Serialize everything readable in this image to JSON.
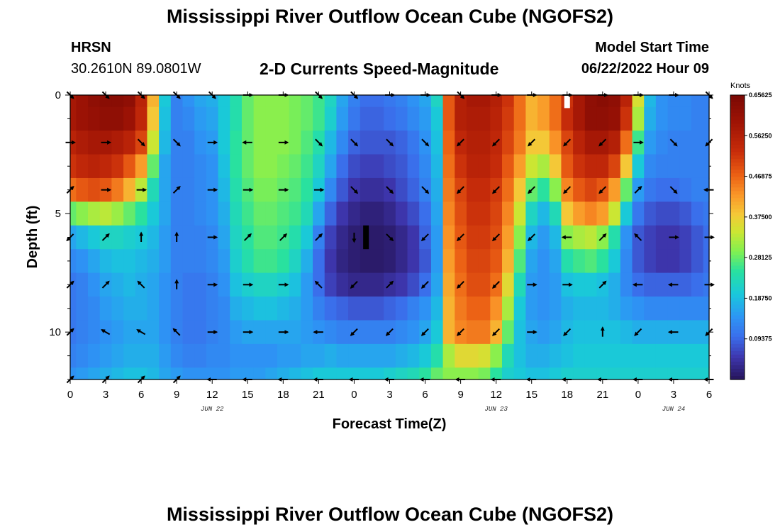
{
  "title": "Mississippi River Outflow Ocean Cube (NGOFS2)",
  "footer_title": "Mississippi River Outflow Ocean Cube (NGOFS2)",
  "station": {
    "name": "HRSN",
    "coords": "30.2610N  89.0801W"
  },
  "subtitle": "2-D Currents Speed-Magnitude",
  "model_start": {
    "label": "Model Start Time",
    "value": "06/22/2022 Hour 09"
  },
  "colors": {
    "arrow": "#000000",
    "axis": "#000000"
  },
  "chart_data": {
    "type": "heatmap",
    "title": "2-D Currents Speed-Magnitude",
    "xlabel": "Forecast Time(Z)",
    "ylabel": "Depth (ft)",
    "x_range_hours": [
      0,
      54
    ],
    "x_tick_hours": [
      0,
      3,
      6,
      9,
      12,
      15,
      18,
      21,
      24,
      27,
      30,
      33,
      36,
      39,
      42,
      45,
      48,
      51,
      54
    ],
    "x_tick_labels": [
      "0",
      "3",
      "6",
      "9",
      "12",
      "15",
      "18",
      "21",
      "0",
      "3",
      "6",
      "9",
      "12",
      "15",
      "18",
      "21",
      "0",
      "3",
      "6"
    ],
    "date_labels": [
      {
        "hour": 12,
        "text": "JUN 22"
      },
      {
        "hour": 36,
        "text": "JUN 23"
      },
      {
        "hour": 51,
        "text": "JUN 24"
      }
    ],
    "y_range_ft": [
      0,
      12
    ],
    "y_ticks": [
      0,
      5,
      10
    ],
    "colorbar": {
      "unit": "Knots",
      "min": 0,
      "max": 0.65625,
      "tick_values": [
        0.65625,
        0.5625,
        0.46875,
        0.375,
        0.28125,
        0.1875,
        0.09375
      ],
      "tick_labels": [
        "0.65625",
        "0.56250",
        "0.46875",
        "0.37500",
        "0.28125",
        "0.18750",
        "0.09375"
      ]
    },
    "grid": {
      "hours": [
        0,
        1,
        2,
        3,
        4,
        5,
        6,
        7,
        8,
        9,
        10,
        11,
        12,
        13,
        14,
        15,
        16,
        17,
        18,
        19,
        20,
        21,
        22,
        23,
        24,
        25,
        26,
        27,
        28,
        29,
        30,
        31,
        32,
        33,
        34,
        35,
        36,
        37,
        38,
        39,
        40,
        41,
        42,
        43,
        44,
        45,
        46,
        47,
        48,
        49,
        50,
        51,
        52,
        53,
        54
      ],
      "depths_ft": [
        0,
        1,
        2,
        3,
        4,
        5,
        6,
        7,
        8,
        9,
        10,
        11,
        12
      ],
      "speed_knots": [
        [
          0.58,
          0.6,
          0.62,
          0.63,
          0.63,
          0.62,
          0.55,
          0.4,
          0.2,
          0.12,
          0.14,
          0.16,
          0.17,
          0.2,
          0.24,
          0.28,
          0.3,
          0.3,
          0.3,
          0.29,
          0.28,
          0.26,
          0.22,
          0.16,
          0.12,
          0.1,
          0.1,
          0.11,
          0.12,
          0.14,
          0.16,
          0.22,
          0.48,
          0.56,
          0.58,
          0.58,
          0.56,
          0.52,
          0.46,
          0.4,
          0.42,
          0.46,
          0.52,
          0.58,
          0.62,
          0.63,
          0.62,
          0.55,
          0.35,
          0.18,
          0.14,
          0.13,
          0.13,
          0.12,
          0.12
        ],
        [
          0.58,
          0.6,
          0.61,
          0.62,
          0.62,
          0.6,
          0.54,
          0.38,
          0.19,
          0.12,
          0.13,
          0.15,
          0.16,
          0.2,
          0.24,
          0.28,
          0.3,
          0.3,
          0.3,
          0.29,
          0.28,
          0.26,
          0.21,
          0.15,
          0.11,
          0.09,
          0.09,
          0.1,
          0.11,
          0.13,
          0.15,
          0.2,
          0.48,
          0.56,
          0.57,
          0.57,
          0.55,
          0.51,
          0.46,
          0.4,
          0.42,
          0.46,
          0.53,
          0.58,
          0.62,
          0.62,
          0.61,
          0.52,
          0.32,
          0.17,
          0.14,
          0.13,
          0.13,
          0.12,
          0.12
        ],
        [
          0.55,
          0.57,
          0.58,
          0.58,
          0.57,
          0.55,
          0.5,
          0.34,
          0.18,
          0.12,
          0.12,
          0.14,
          0.15,
          0.2,
          0.25,
          0.28,
          0.3,
          0.3,
          0.3,
          0.29,
          0.27,
          0.24,
          0.18,
          0.13,
          0.09,
          0.08,
          0.08,
          0.08,
          0.09,
          0.11,
          0.14,
          0.19,
          0.47,
          0.54,
          0.56,
          0.56,
          0.54,
          0.5,
          0.45,
          0.38,
          0.38,
          0.43,
          0.5,
          0.55,
          0.58,
          0.58,
          0.56,
          0.46,
          0.26,
          0.15,
          0.13,
          0.12,
          0.12,
          0.12,
          0.12
        ],
        [
          0.52,
          0.54,
          0.55,
          0.54,
          0.52,
          0.48,
          0.42,
          0.28,
          0.16,
          0.12,
          0.12,
          0.13,
          0.14,
          0.19,
          0.25,
          0.28,
          0.3,
          0.3,
          0.29,
          0.28,
          0.26,
          0.22,
          0.16,
          0.1,
          0.07,
          0.06,
          0.06,
          0.07,
          0.08,
          0.1,
          0.13,
          0.18,
          0.46,
          0.52,
          0.55,
          0.55,
          0.53,
          0.48,
          0.42,
          0.34,
          0.32,
          0.38,
          0.48,
          0.52,
          0.54,
          0.54,
          0.5,
          0.38,
          0.2,
          0.13,
          0.12,
          0.12,
          0.12,
          0.12,
          0.12
        ],
        [
          0.46,
          0.48,
          0.49,
          0.48,
          0.45,
          0.4,
          0.33,
          0.23,
          0.16,
          0.12,
          0.12,
          0.13,
          0.14,
          0.18,
          0.24,
          0.27,
          0.29,
          0.29,
          0.28,
          0.27,
          0.25,
          0.2,
          0.13,
          0.08,
          0.05,
          0.04,
          0.04,
          0.05,
          0.07,
          0.09,
          0.12,
          0.17,
          0.45,
          0.5,
          0.53,
          0.53,
          0.51,
          0.46,
          0.38,
          0.28,
          0.25,
          0.3,
          0.44,
          0.48,
          0.5,
          0.48,
          0.42,
          0.28,
          0.15,
          0.11,
          0.1,
          0.1,
          0.11,
          0.12,
          0.12
        ],
        [
          0.28,
          0.3,
          0.32,
          0.33,
          0.31,
          0.28,
          0.25,
          0.2,
          0.16,
          0.12,
          0.12,
          0.13,
          0.14,
          0.17,
          0.23,
          0.26,
          0.28,
          0.28,
          0.27,
          0.26,
          0.23,
          0.16,
          0.09,
          0.05,
          0.03,
          0.02,
          0.02,
          0.03,
          0.05,
          0.07,
          0.1,
          0.16,
          0.44,
          0.49,
          0.52,
          0.52,
          0.5,
          0.44,
          0.34,
          0.22,
          0.18,
          0.23,
          0.38,
          0.42,
          0.44,
          0.42,
          0.34,
          0.2,
          0.11,
          0.08,
          0.07,
          0.07,
          0.08,
          0.1,
          0.11
        ],
        [
          0.16,
          0.18,
          0.2,
          0.22,
          0.22,
          0.21,
          0.2,
          0.18,
          0.15,
          0.12,
          0.12,
          0.12,
          0.13,
          0.16,
          0.22,
          0.25,
          0.27,
          0.27,
          0.26,
          0.24,
          0.2,
          0.12,
          0.06,
          0.03,
          0.015,
          0.01,
          0.01,
          0.015,
          0.03,
          0.05,
          0.09,
          0.15,
          0.43,
          0.48,
          0.51,
          0.51,
          0.49,
          0.42,
          0.3,
          0.18,
          0.15,
          0.18,
          0.3,
          0.32,
          0.33,
          0.3,
          0.24,
          0.14,
          0.08,
          0.06,
          0.05,
          0.05,
          0.06,
          0.08,
          0.1
        ],
        [
          0.13,
          0.14,
          0.16,
          0.18,
          0.19,
          0.19,
          0.18,
          0.17,
          0.15,
          0.12,
          0.12,
          0.12,
          0.13,
          0.15,
          0.21,
          0.24,
          0.26,
          0.26,
          0.25,
          0.22,
          0.17,
          0.1,
          0.05,
          0.025,
          0.015,
          0.01,
          0.01,
          0.015,
          0.03,
          0.05,
          0.08,
          0.15,
          0.42,
          0.47,
          0.5,
          0.5,
          0.48,
          0.4,
          0.27,
          0.16,
          0.14,
          0.16,
          0.24,
          0.26,
          0.27,
          0.25,
          0.2,
          0.13,
          0.08,
          0.06,
          0.05,
          0.05,
          0.06,
          0.08,
          0.1
        ],
        [
          0.11,
          0.12,
          0.14,
          0.16,
          0.17,
          0.18,
          0.17,
          0.16,
          0.14,
          0.12,
          0.11,
          0.11,
          0.12,
          0.14,
          0.19,
          0.21,
          0.22,
          0.22,
          0.21,
          0.19,
          0.15,
          0.1,
          0.06,
          0.04,
          0.03,
          0.03,
          0.03,
          0.04,
          0.05,
          0.07,
          0.1,
          0.16,
          0.41,
          0.46,
          0.49,
          0.49,
          0.46,
          0.36,
          0.23,
          0.15,
          0.14,
          0.15,
          0.19,
          0.2,
          0.2,
          0.19,
          0.17,
          0.13,
          0.1,
          0.09,
          0.09,
          0.09,
          0.09,
          0.1,
          0.11
        ],
        [
          0.11,
          0.12,
          0.13,
          0.15,
          0.16,
          0.17,
          0.17,
          0.16,
          0.14,
          0.12,
          0.11,
          0.11,
          0.12,
          0.13,
          0.17,
          0.18,
          0.19,
          0.19,
          0.18,
          0.17,
          0.15,
          0.12,
          0.1,
          0.09,
          0.08,
          0.08,
          0.08,
          0.09,
          0.1,
          0.12,
          0.14,
          0.18,
          0.4,
          0.45,
          0.47,
          0.47,
          0.43,
          0.32,
          0.2,
          0.15,
          0.14,
          0.15,
          0.17,
          0.18,
          0.18,
          0.18,
          0.17,
          0.15,
          0.14,
          0.13,
          0.13,
          0.13,
          0.13,
          0.13,
          0.13
        ],
        [
          0.11,
          0.12,
          0.13,
          0.14,
          0.15,
          0.16,
          0.16,
          0.16,
          0.14,
          0.12,
          0.11,
          0.11,
          0.12,
          0.13,
          0.15,
          0.16,
          0.16,
          0.16,
          0.16,
          0.16,
          0.15,
          0.14,
          0.13,
          0.12,
          0.12,
          0.12,
          0.12,
          0.12,
          0.13,
          0.14,
          0.16,
          0.2,
          0.4,
          0.44,
          0.45,
          0.45,
          0.4,
          0.28,
          0.19,
          0.16,
          0.15,
          0.16,
          0.18,
          0.19,
          0.19,
          0.19,
          0.19,
          0.18,
          0.17,
          0.17,
          0.17,
          0.17,
          0.17,
          0.17,
          0.17
        ],
        [
          0.12,
          0.13,
          0.14,
          0.15,
          0.16,
          0.17,
          0.17,
          0.17,
          0.15,
          0.13,
          0.12,
          0.12,
          0.13,
          0.13,
          0.14,
          0.14,
          0.14,
          0.14,
          0.15,
          0.15,
          0.16,
          0.16,
          0.17,
          0.16,
          0.16,
          0.16,
          0.16,
          0.16,
          0.17,
          0.18,
          0.2,
          0.24,
          0.32,
          0.36,
          0.36,
          0.35,
          0.3,
          0.23,
          0.19,
          0.17,
          0.17,
          0.18,
          0.19,
          0.2,
          0.2,
          0.2,
          0.2,
          0.2,
          0.2,
          0.2,
          0.2,
          0.2,
          0.2,
          0.2,
          0.2
        ],
        [
          0.14,
          0.15,
          0.16,
          0.17,
          0.18,
          0.19,
          0.19,
          0.18,
          0.16,
          0.15,
          0.14,
          0.14,
          0.14,
          0.14,
          0.15,
          0.15,
          0.15,
          0.16,
          0.17,
          0.18,
          0.19,
          0.2,
          0.2,
          0.2,
          0.2,
          0.2,
          0.2,
          0.21,
          0.22,
          0.23,
          0.25,
          0.28,
          0.3,
          0.3,
          0.3,
          0.29,
          0.25,
          0.21,
          0.2,
          0.19,
          0.19,
          0.2,
          0.21,
          0.21,
          0.21,
          0.21,
          0.21,
          0.21,
          0.21,
          0.21,
          0.21,
          0.21,
          0.21,
          0.21,
          0.21
        ]
      ]
    },
    "vectors": {
      "hours": [
        0,
        3,
        6,
        9,
        12,
        15,
        18,
        21,
        24,
        27,
        30,
        33,
        36,
        39,
        42,
        45,
        48,
        51,
        54
      ],
      "depths_ft": [
        0,
        2,
        4,
        6,
        8,
        10,
        12
      ],
      "direction_deg": [
        [
          135,
          135,
          135,
          135,
          135,
          90,
          90,
          135,
          135,
          90,
          90,
          135,
          90,
          90,
          90,
          90,
          90,
          90,
          135
        ],
        [
          90,
          90,
          135,
          135,
          90,
          270,
          90,
          135,
          135,
          135,
          135,
          225,
          225,
          225,
          225,
          225,
          90,
          135,
          225
        ],
        [
          45,
          90,
          90,
          45,
          90,
          90,
          90,
          90,
          135,
          135,
          135,
          225,
          225,
          225,
          225,
          225,
          45,
          135,
          270
        ],
        [
          225,
          45,
          0,
          0,
          90,
          45,
          45,
          45,
          180,
          135,
          225,
          225,
          225,
          225,
          270,
          45,
          315,
          90,
          90
        ],
        [
          45,
          45,
          315,
          0,
          90,
          90,
          90,
          315,
          225,
          45,
          225,
          225,
          225,
          90,
          90,
          45,
          270,
          270,
          90
        ],
        [
          45,
          300,
          300,
          315,
          90,
          90,
          90,
          270,
          225,
          225,
          225,
          225,
          225,
          90,
          225,
          0,
          225,
          270,
          225
        ],
        [
          45,
          45,
          45,
          45,
          270,
          270,
          270,
          270,
          270,
          270,
          270,
          270,
          270,
          270,
          270,
          270,
          270,
          270,
          270
        ]
      ]
    },
    "missing_marks": [
      {
        "hour": 25,
        "depth_from_ft": 5.5,
        "depth_to_ft": 6.5,
        "color": "black"
      },
      {
        "hour": 42,
        "depth_from_ft": 0,
        "depth_to_ft": 0.55,
        "color": "white"
      }
    ]
  }
}
